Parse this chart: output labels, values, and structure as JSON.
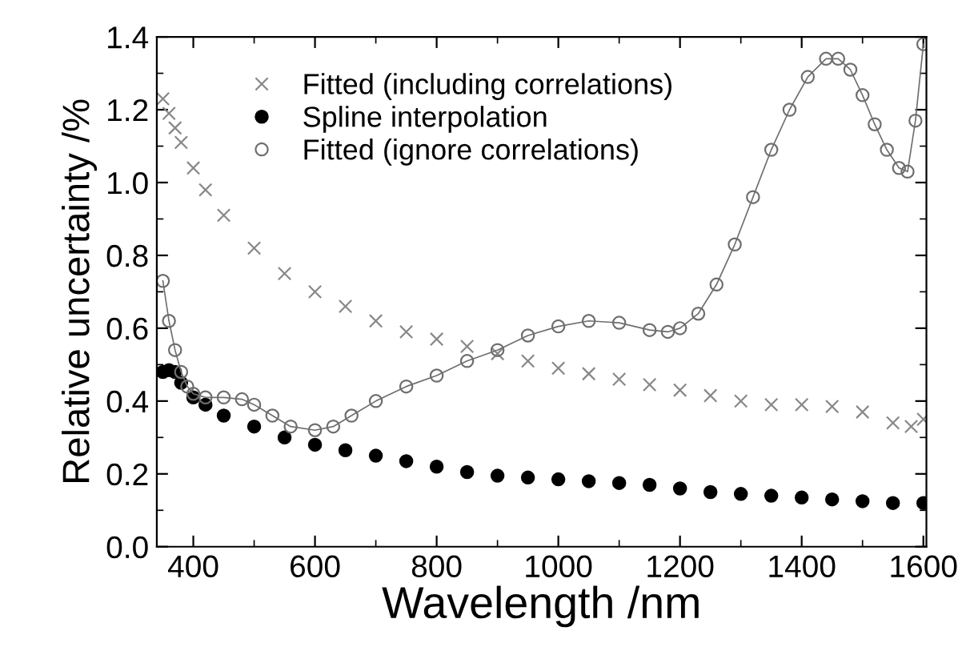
{
  "chart_data": {
    "type": "scatter",
    "xlabel": "Wavelength /nm",
    "ylabel": "Relative uncertainty /%",
    "xlim": [
      340,
      1605
    ],
    "ylim": [
      0,
      1.4
    ],
    "xticks": [
      400,
      600,
      800,
      1000,
      1200,
      1400,
      1600
    ],
    "yticks": [
      {
        "value": 0,
        "label": "0.0"
      },
      0.2,
      0.4,
      0.6,
      0.8,
      {
        "value": 1,
        "label": "1.0"
      },
      1.2,
      1.4
    ],
    "grid": false,
    "legend": "top left",
    "series": [
      {
        "name": "Fitted (including correlations)",
        "color": "#888888",
        "marker": "cross",
        "x": [
          350,
          360,
          370,
          380,
          400,
          420,
          450,
          500,
          550,
          600,
          650,
          700,
          750,
          800,
          850,
          900,
          950,
          1000,
          1050,
          1100,
          1150,
          1200,
          1250,
          1300,
          1350,
          1400,
          1450,
          1500,
          1550,
          1580,
          1600
        ],
        "values": [
          1.23,
          1.19,
          1.15,
          1.11,
          1.04,
          0.98,
          0.91,
          0.82,
          0.75,
          0.7,
          0.66,
          0.62,
          0.59,
          0.57,
          0.55,
          0.53,
          0.51,
          0.49,
          0.475,
          0.46,
          0.445,
          0.43,
          0.415,
          0.4,
          0.39,
          0.39,
          0.385,
          0.37,
          0.34,
          0.33,
          0.35
        ]
      },
      {
        "name": "Spline interpolation",
        "color": "#000000",
        "marker": "circle",
        "x": [
          350,
          360,
          370,
          380,
          400,
          420,
          450,
          500,
          550,
          600,
          650,
          700,
          750,
          800,
          850,
          900,
          950,
          1000,
          1050,
          1100,
          1150,
          1200,
          1250,
          1300,
          1350,
          1400,
          1450,
          1500,
          1550,
          1600
        ],
        "values": [
          0.48,
          0.485,
          0.48,
          0.45,
          0.41,
          0.39,
          0.36,
          0.33,
          0.3,
          0.28,
          0.265,
          0.25,
          0.235,
          0.22,
          0.205,
          0.195,
          0.19,
          0.185,
          0.18,
          0.175,
          0.17,
          0.16,
          0.15,
          0.145,
          0.14,
          0.135,
          0.13,
          0.125,
          0.12,
          0.12
        ]
      },
      {
        "name": "Fitted (ignore correlations)",
        "type": "line",
        "color": "#6e6e6e",
        "marker": "circle",
        "line_style": "solid",
        "x": [
          350,
          360,
          370,
          380,
          390,
          400,
          420,
          450,
          480,
          500,
          530,
          560,
          600,
          630,
          660,
          700,
          750,
          800,
          850,
          900,
          950,
          1000,
          1050,
          1100,
          1150,
          1180,
          1200,
          1230,
          1260,
          1290,
          1320,
          1350,
          1380,
          1410,
          1440,
          1460,
          1480,
          1500,
          1520,
          1540,
          1560,
          1574,
          1587,
          1600
        ],
        "values": [
          0.73,
          0.62,
          0.54,
          0.48,
          0.44,
          0.42,
          0.41,
          0.41,
          0.405,
          0.39,
          0.36,
          0.33,
          0.32,
          0.33,
          0.36,
          0.4,
          0.44,
          0.47,
          0.51,
          0.54,
          0.58,
          0.605,
          0.62,
          0.615,
          0.595,
          0.59,
          0.6,
          0.64,
          0.72,
          0.83,
          0.96,
          1.09,
          1.2,
          1.29,
          1.34,
          1.34,
          1.31,
          1.24,
          1.16,
          1.09,
          1.04,
          1.03,
          1.17,
          1.38
        ]
      }
    ]
  }
}
